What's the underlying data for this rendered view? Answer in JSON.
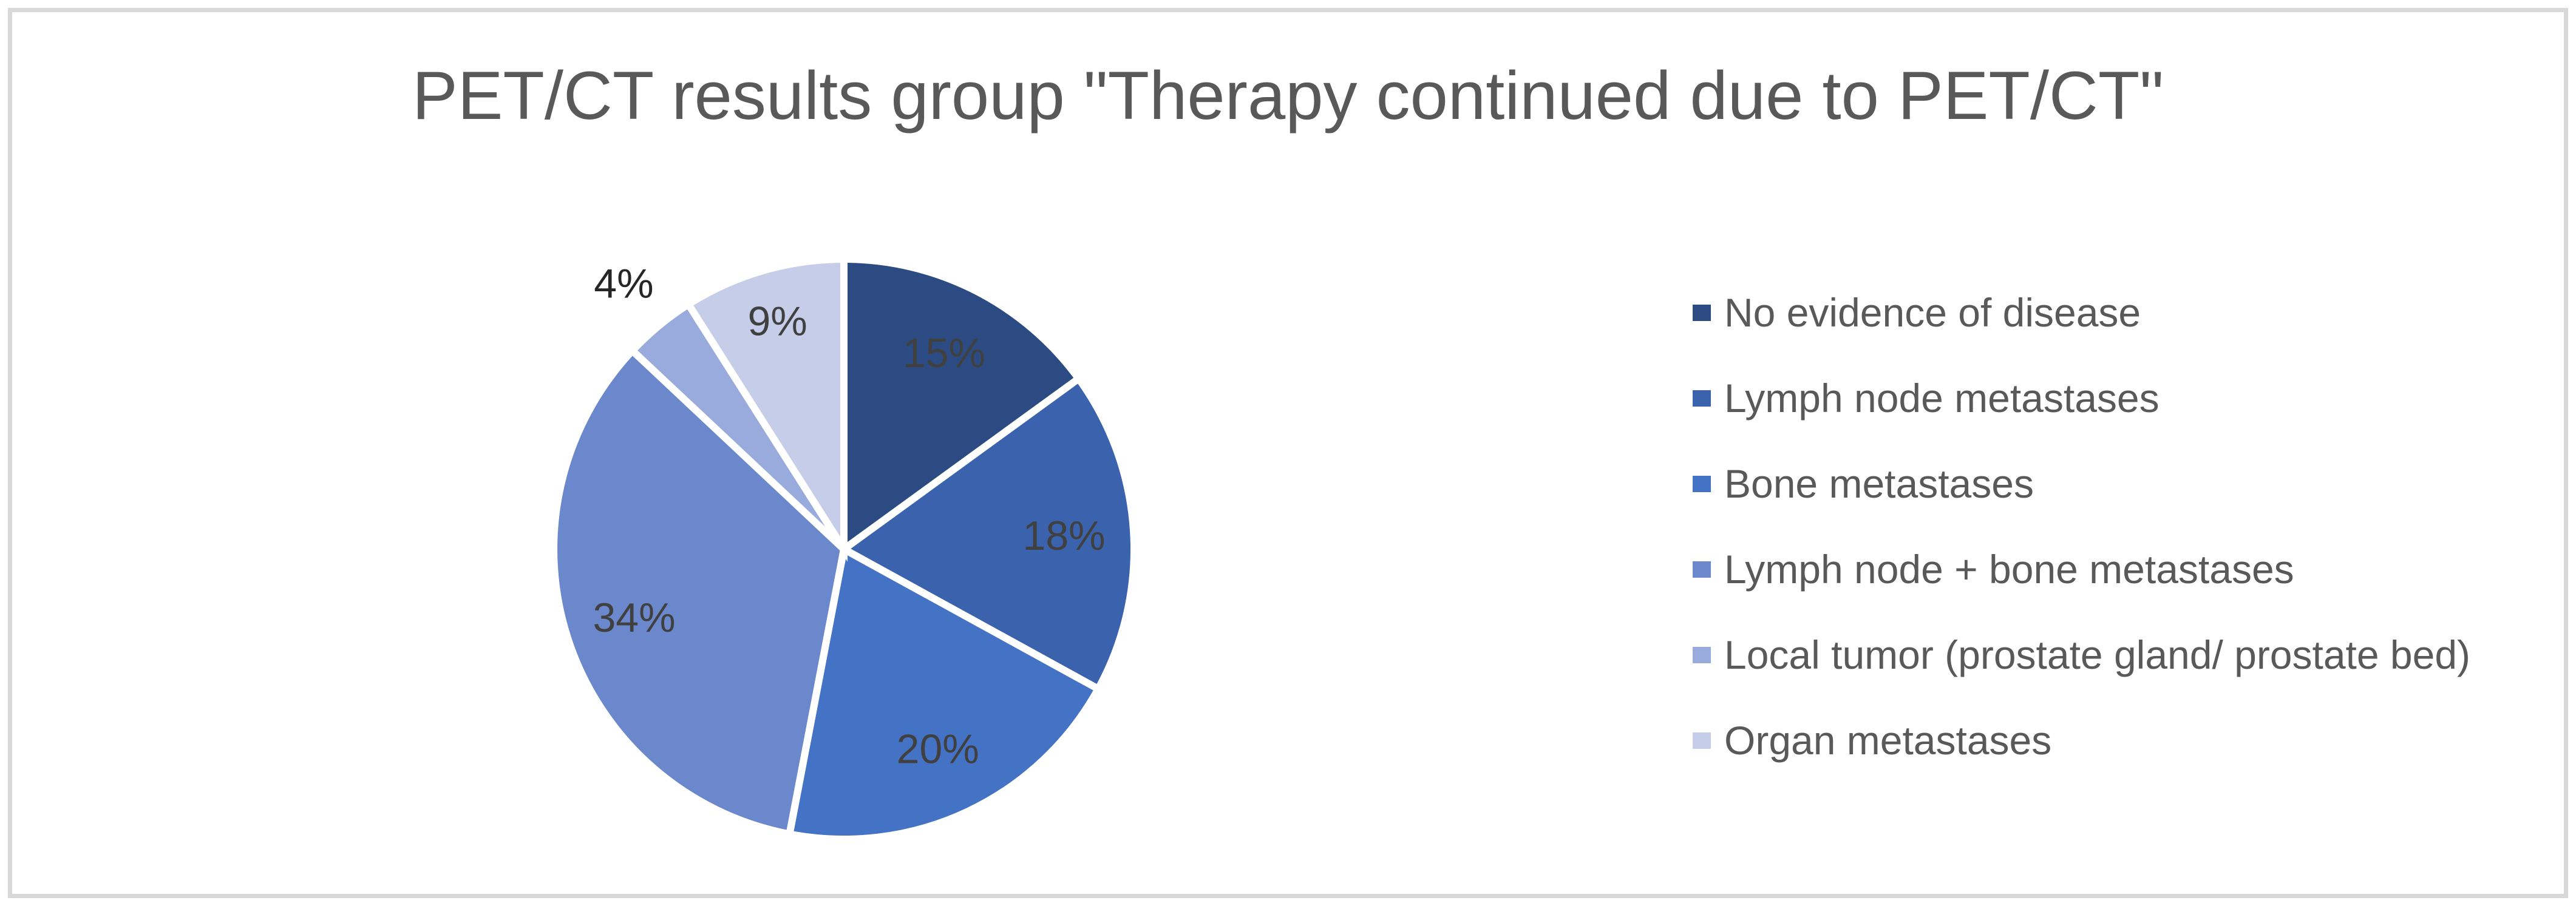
{
  "colors": {
    "background": "#FFFFFF",
    "frame_border": "#D8D8D8",
    "title_text": "#595959",
    "legend_text": "#595959",
    "data_label": "#404040",
    "outside_data_label": "#262626",
    "slice_border": "#FFFFFF"
  },
  "chart_data": {
    "type": "pie",
    "title": "PET/CT results group \"Therapy continued due to PET/CT\"",
    "start_angle_deg": 0,
    "direction": "clockwise",
    "legend_position": "right",
    "data_labels": "percent",
    "slices": [
      {
        "label": "No evidence of disease",
        "value": 15,
        "display": "15%",
        "color": "#2B4B82"
      },
      {
        "label": "Lymph node metastases",
        "value": 18,
        "display": "18%",
        "color": "#3A62AD"
      },
      {
        "label": "Bone metastases",
        "value": 20,
        "display": "20%",
        "color": "#4472C4"
      },
      {
        "label": "Lymph node + bone metastases",
        "value": 34,
        "display": "34%",
        "color": "#6C88CD"
      },
      {
        "label": "Local tumor (prostate gland/ prostate bed)",
        "value": 4,
        "display": "4%",
        "color": "#99ABDD",
        "label_outside": true
      },
      {
        "label": "Organ metastases",
        "value": 9,
        "display": "9%",
        "color": "#C5CDE9"
      }
    ]
  }
}
